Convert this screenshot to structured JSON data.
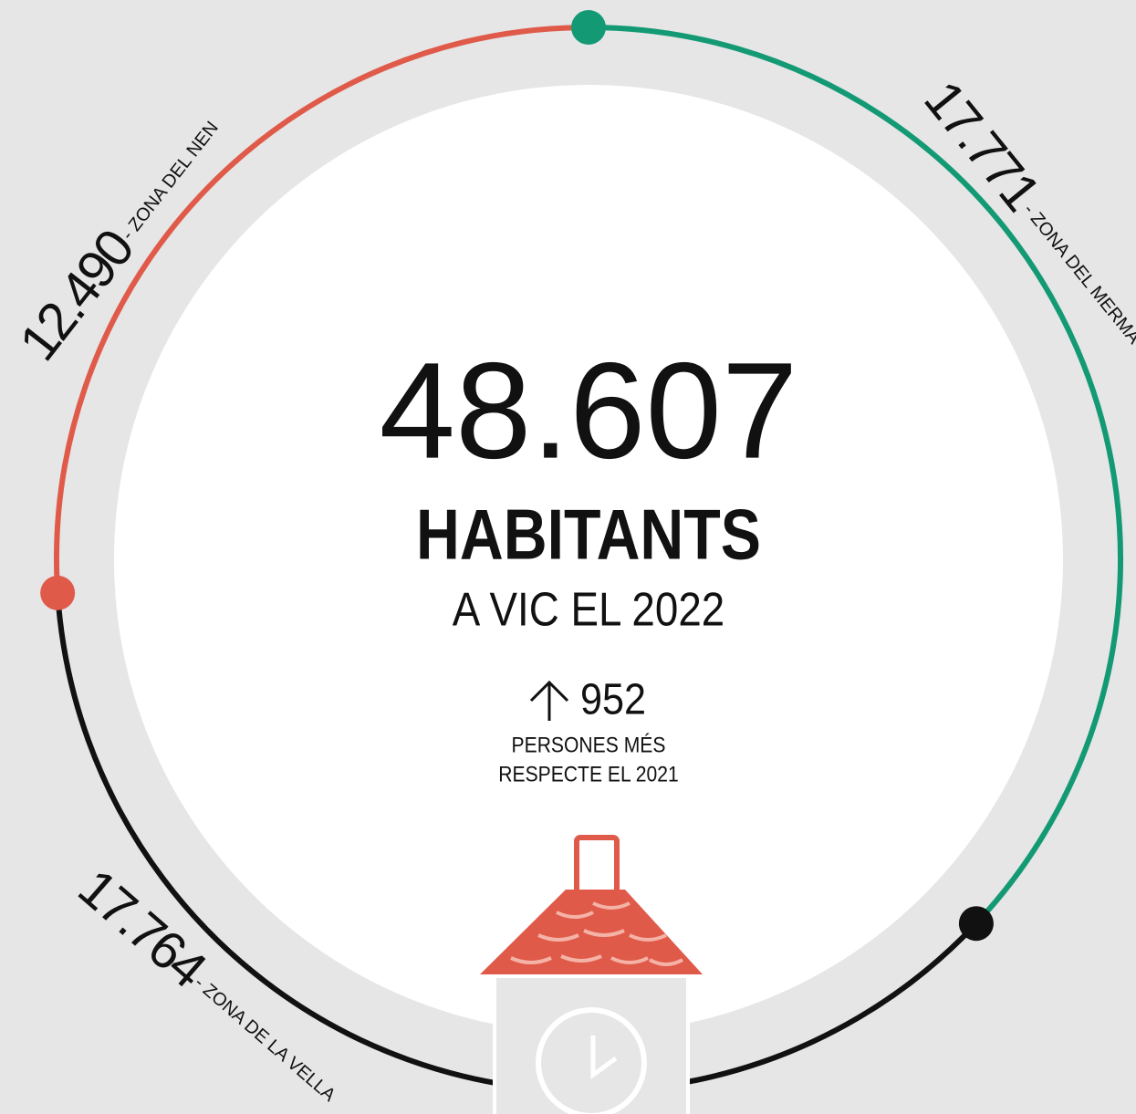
{
  "chart_data": {
    "type": "donut",
    "title": "48.607",
    "subtitle": "HABITANTS",
    "annotations": [
      "A VIC EL 2022",
      "952",
      "PERSONES MÉS",
      "RESPECTE EL 2021"
    ],
    "categories": [
      "- ZONA DEL MERMA",
      "- ZONA DE LA VELLA",
      "- ZONA DEL NEN"
    ],
    "values": [
      17771,
      17764,
      12490
    ],
    "value_labels": [
      "17.771",
      "17.764",
      "12.490"
    ],
    "colors": [
      "#139a74",
      "#111111",
      "#e05a4a"
    ]
  }
}
